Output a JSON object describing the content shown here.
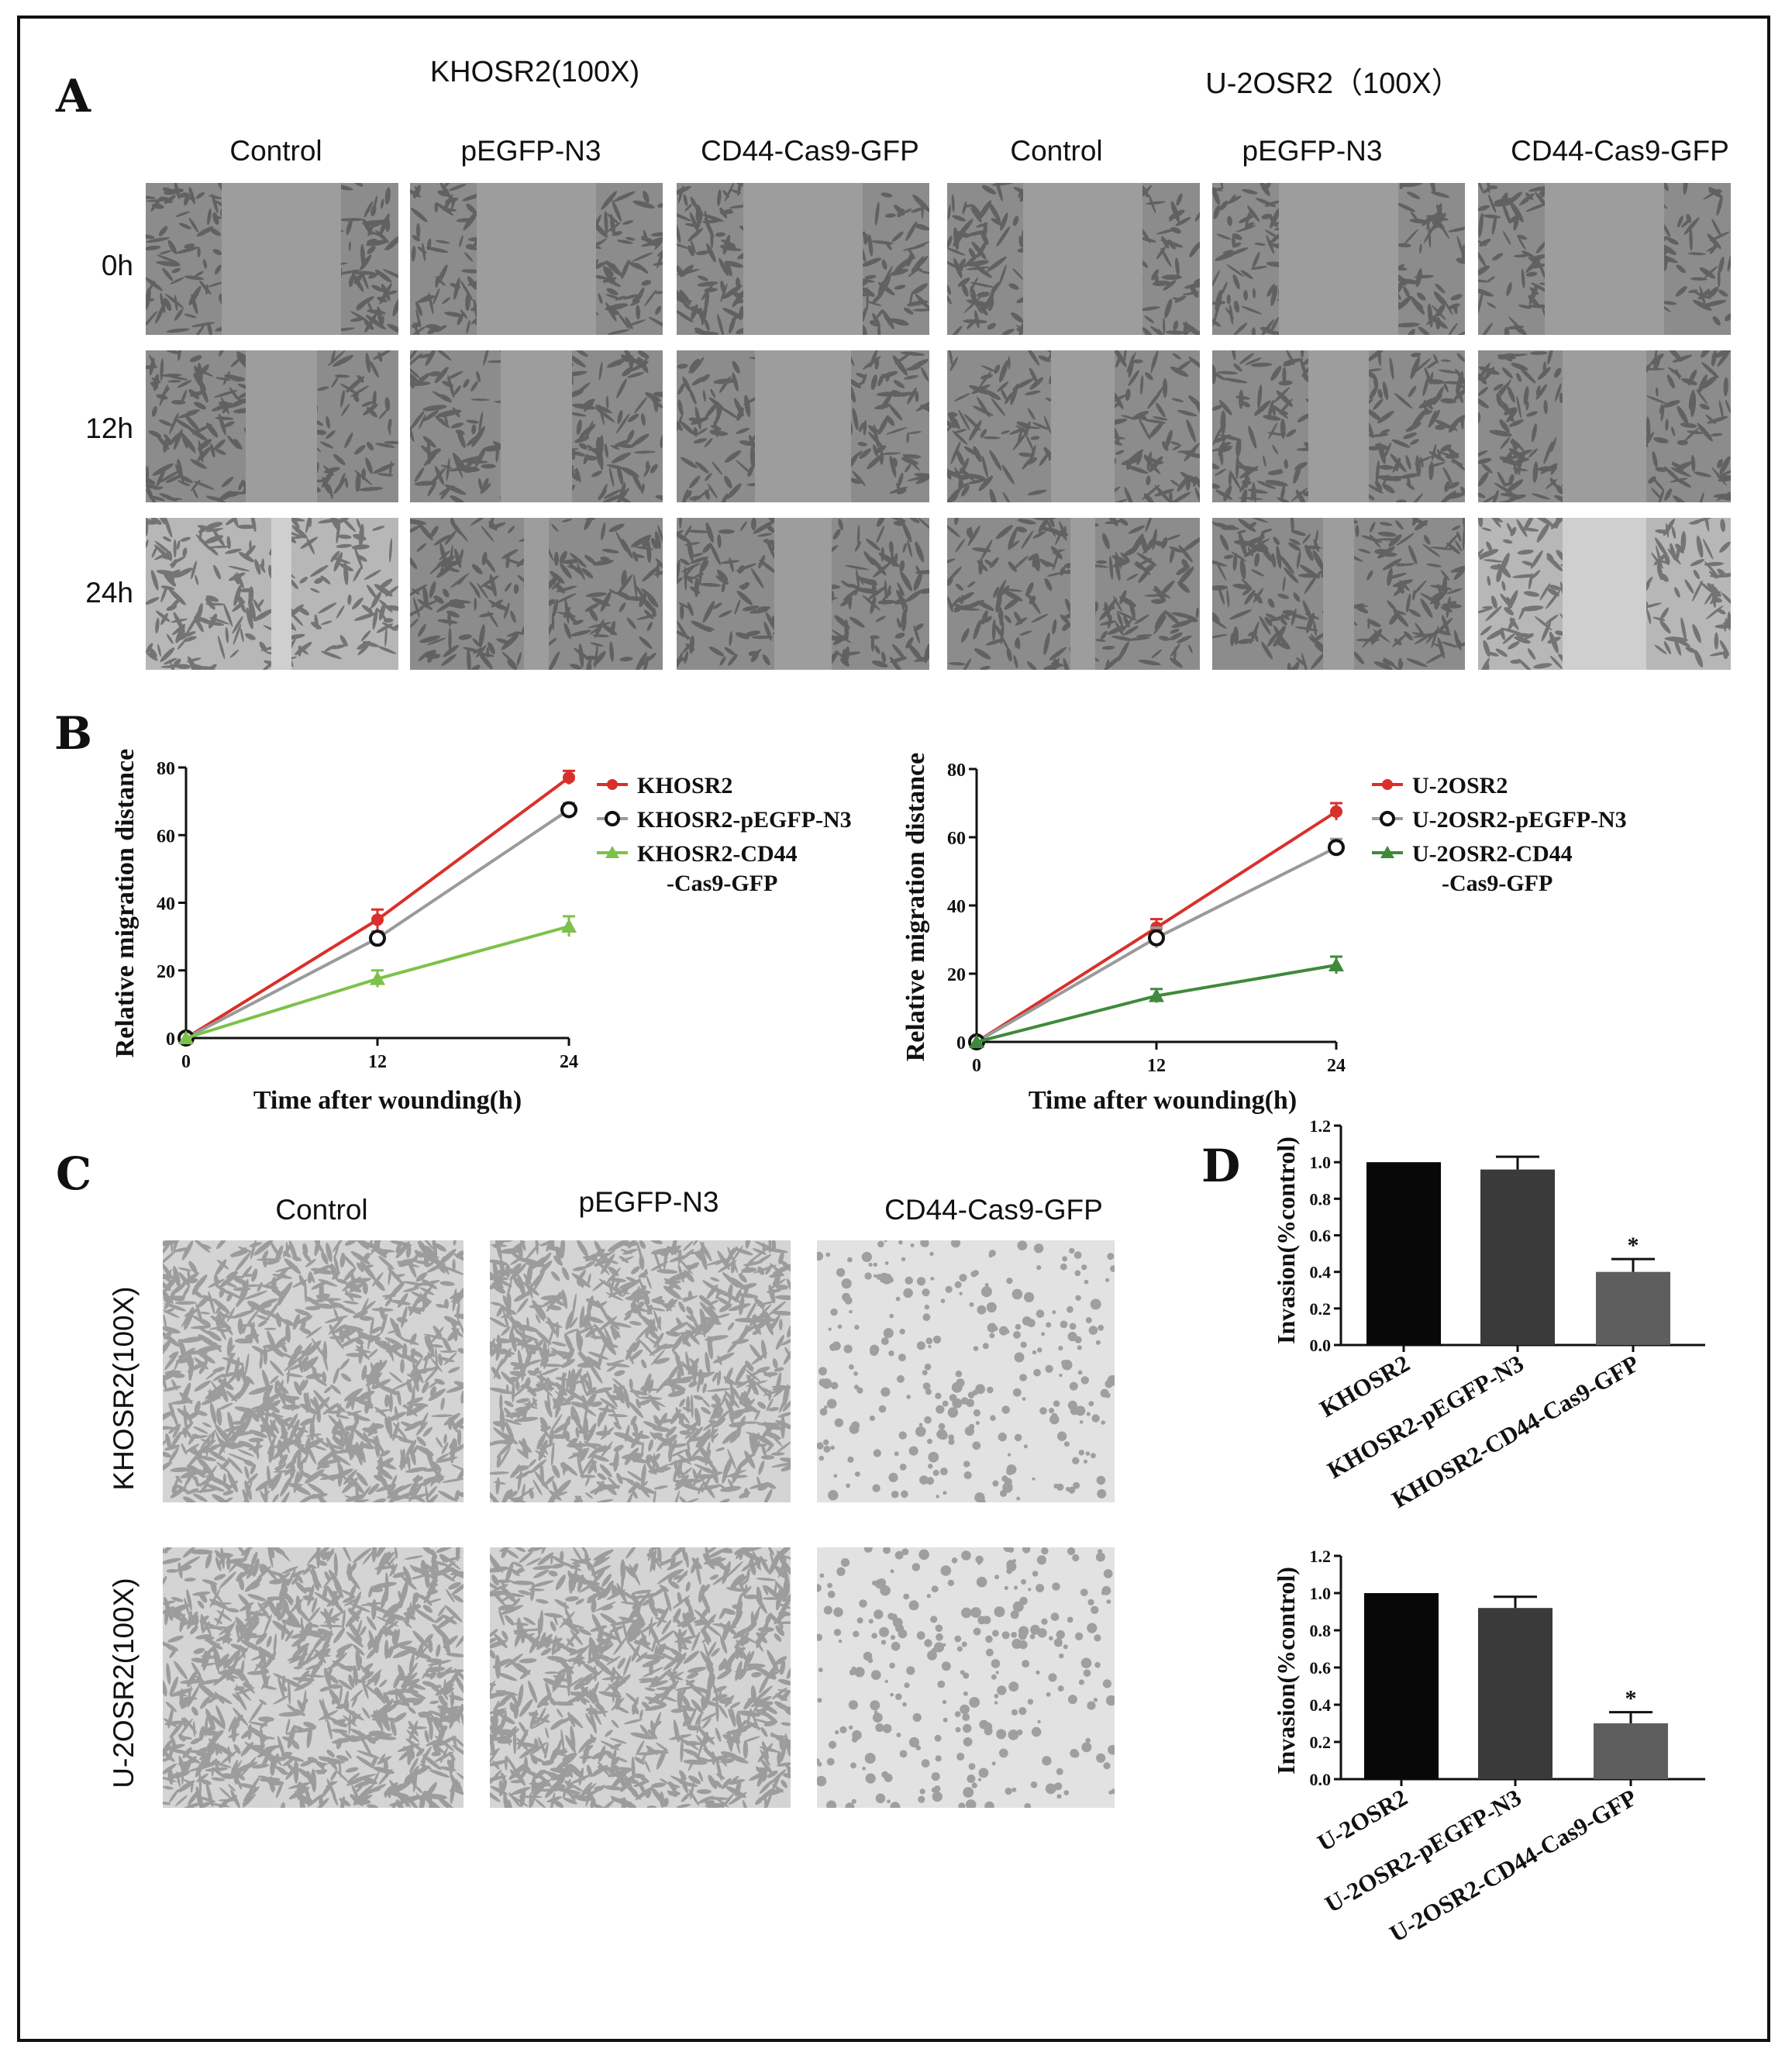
{
  "panel_labels": {
    "a": "A",
    "b": "B",
    "c": "C",
    "d": "D"
  },
  "panel_a": {
    "group_titles": [
      "KHOSR2(100X)",
      "U-2OSR2（100X）"
    ],
    "column_labels": [
      "Control",
      "pEGFP-N3",
      "CD44-Cas9-GFP",
      "Control",
      "pEGFP-N3",
      "CD44-Cas9-GFP"
    ],
    "row_labels": [
      "0h",
      "12h",
      "24h"
    ],
    "wound_gap_fraction": [
      [
        0.47,
        0.47,
        0.47,
        0.47,
        0.47,
        0.47
      ],
      [
        0.28,
        0.28,
        0.38,
        0.25,
        0.24,
        0.33
      ],
      [
        0.08,
        0.1,
        0.23,
        0.1,
        0.12,
        0.33
      ]
    ]
  },
  "panel_c": {
    "column_labels": [
      "Control",
      "pEGFP-N3",
      "CD44-Cas9-GFP"
    ],
    "row_labels": [
      "KHOSR2(100X)",
      "U-2OSR2(100X)"
    ]
  },
  "chart_data": [
    {
      "id": "B-left",
      "type": "line",
      "xlabel": "Time after wounding(h)",
      "ylabel": "Relative migration distance",
      "x": [
        0,
        12,
        24
      ],
      "x_ticks": [
        "0",
        "12",
        "24"
      ],
      "y_ticks": [
        "0",
        "20",
        "40",
        "60",
        "80"
      ],
      "ylim": [
        0,
        80
      ],
      "legend_position": "top-right",
      "series": [
        {
          "name": "KHOSR2",
          "values": [
            0,
            35,
            77
          ],
          "errors": [
            0,
            3,
            2
          ],
          "color": "#d9302c",
          "marker": "circle-filled"
        },
        {
          "name": "KHOSR2-pEGFP-N3",
          "values": [
            0,
            29.5,
            67.5
          ],
          "errors": [
            0,
            2,
            2
          ],
          "color": "#9a9a9a",
          "marker": "circle-open"
        },
        {
          "name": "KHOSR2-CD44\n-Cas9-GFP",
          "values": [
            0,
            17.5,
            33
          ],
          "errors": [
            0,
            2.5,
            3
          ],
          "color": "#7cc24a",
          "marker": "triangle"
        }
      ]
    },
    {
      "id": "B-right",
      "type": "line",
      "xlabel": "Time after wounding(h)",
      "ylabel": "Relative migration distance",
      "x": [
        0,
        12,
        24
      ],
      "x_ticks": [
        "0",
        "12",
        "24"
      ],
      "y_ticks": [
        "0",
        "20",
        "40",
        "60",
        "80"
      ],
      "ylim": [
        0,
        80
      ],
      "legend_position": "top-right",
      "series": [
        {
          "name": "U-2OSR2",
          "values": [
            0,
            33.5,
            67.5
          ],
          "errors": [
            0,
            2.5,
            2.5
          ],
          "color": "#d9302c",
          "marker": "circle-filled"
        },
        {
          "name": "U-2OSR2-pEGFP-N3",
          "values": [
            0,
            30.5,
            57
          ],
          "errors": [
            0,
            3,
            2.5
          ],
          "color": "#9a9a9a",
          "marker": "circle-open"
        },
        {
          "name": "U-2OSR2-CD44\n-Cas9-GFP",
          "values": [
            0,
            13.5,
            22.5
          ],
          "errors": [
            0,
            2,
            2.5
          ],
          "color": "#3f8a3a",
          "marker": "triangle"
        }
      ]
    },
    {
      "id": "D-top",
      "type": "bar",
      "ylabel": "Invasion(%control)",
      "categories": [
        "KHOSR2",
        "KHOSR2-pEGFP-N3",
        "KHOSR2-CD44-Cas9-GFP"
      ],
      "values": [
        1.0,
        0.96,
        0.4
      ],
      "errors": [
        0,
        0.07,
        0.07
      ],
      "significance": [
        "",
        "",
        "*"
      ],
      "bar_colors": [
        "#080808",
        "#3a3a3a",
        "#5e5e5e"
      ],
      "y_ticks": [
        "0.0",
        "0.2",
        "0.4",
        "0.6",
        "0.8",
        "1.0",
        "1.2"
      ],
      "ylim": [
        0,
        1.2
      ]
    },
    {
      "id": "D-bottom",
      "type": "bar",
      "ylabel": "Invasion(%control)",
      "categories": [
        "U-2OSR2",
        "U-2OSR2-pEGFP-N3",
        "U-2OSR2-CD44-Cas9-GFP"
      ],
      "values": [
        1.0,
        0.92,
        0.3
      ],
      "errors": [
        0,
        0.06,
        0.06
      ],
      "significance": [
        "",
        "",
        "*"
      ],
      "bar_colors": [
        "#080808",
        "#3a3a3a",
        "#5e5e5e"
      ],
      "y_ticks": [
        "0.0",
        "0.2",
        "0.4",
        "0.6",
        "0.8",
        "1.0",
        "1.2"
      ],
      "ylim": [
        0,
        1.2
      ]
    }
  ]
}
